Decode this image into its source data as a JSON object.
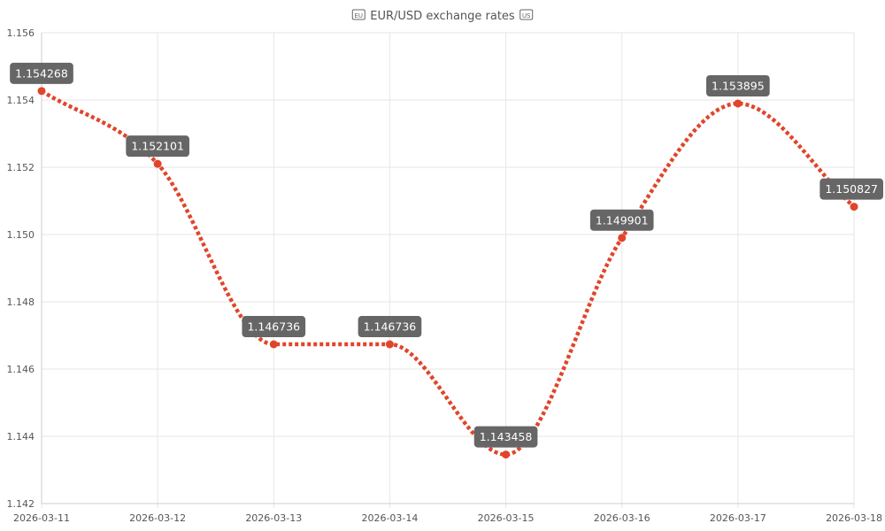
{
  "chart_data": {
    "type": "line",
    "title": "EUR/USD exchange rates",
    "title_icons": [
      "eu-flag-icon",
      "us-flag-icon"
    ],
    "x": [
      "2026-03-11",
      "2026-03-12",
      "2026-03-13",
      "2026-03-14",
      "2026-03-15",
      "2026-03-16",
      "2026-03-17",
      "2026-03-18"
    ],
    "series": [
      {
        "values": [
          1.154268,
          1.152101,
          1.146736,
          1.146736,
          1.143458,
          1.149901,
          1.153895,
          1.150827
        ],
        "data_labels": [
          "1.154268",
          "1.152101",
          "1.146736",
          "1.146736",
          "1.143458",
          "1.149901",
          "1.153895",
          "1.150827"
        ],
        "color": "#e0452b",
        "line_style": "dotted",
        "curve": "smooth"
      }
    ],
    "ylim": [
      1.142,
      1.156
    ],
    "yticks": [
      1.142,
      1.144,
      1.146,
      1.148,
      1.15,
      1.152,
      1.154,
      1.156
    ],
    "ytick_labels": [
      "1.142",
      "1.144",
      "1.146",
      "1.148",
      "1.150",
      "1.152",
      "1.154",
      "1.156"
    ],
    "xlabel": "",
    "ylabel": "",
    "grid": true,
    "legend": "none",
    "label_box_color": "#666666",
    "grid_color": "#e6e6e6",
    "axis_color": "#cccccc"
  }
}
